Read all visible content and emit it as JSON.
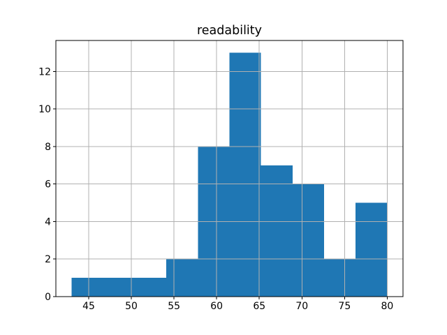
{
  "chart_data": {
    "type": "bar",
    "subtype": "histogram",
    "title": "readability",
    "xlabel": "",
    "ylabel": "",
    "bin_edges": [
      43.0,
      46.7,
      50.4,
      54.1,
      57.8,
      61.5,
      65.2,
      68.9,
      72.6,
      76.3,
      80.0
    ],
    "values": [
      1,
      1,
      1,
      2,
      8,
      13,
      7,
      6,
      2,
      5
    ],
    "xticks": [
      45,
      50,
      55,
      60,
      65,
      70,
      75,
      80
    ],
    "yticks": [
      0,
      2,
      4,
      6,
      8,
      10,
      12
    ],
    "xlim": [
      41.15,
      81.85
    ],
    "ylim": [
      0,
      13.65
    ],
    "grid": true,
    "grid_on_top_of_bars": true,
    "legend": false,
    "bar_color": "#1f77b4",
    "grid_color": "#b0b0b0",
    "axis_color": "#000000",
    "background_color": "#ffffff"
  }
}
